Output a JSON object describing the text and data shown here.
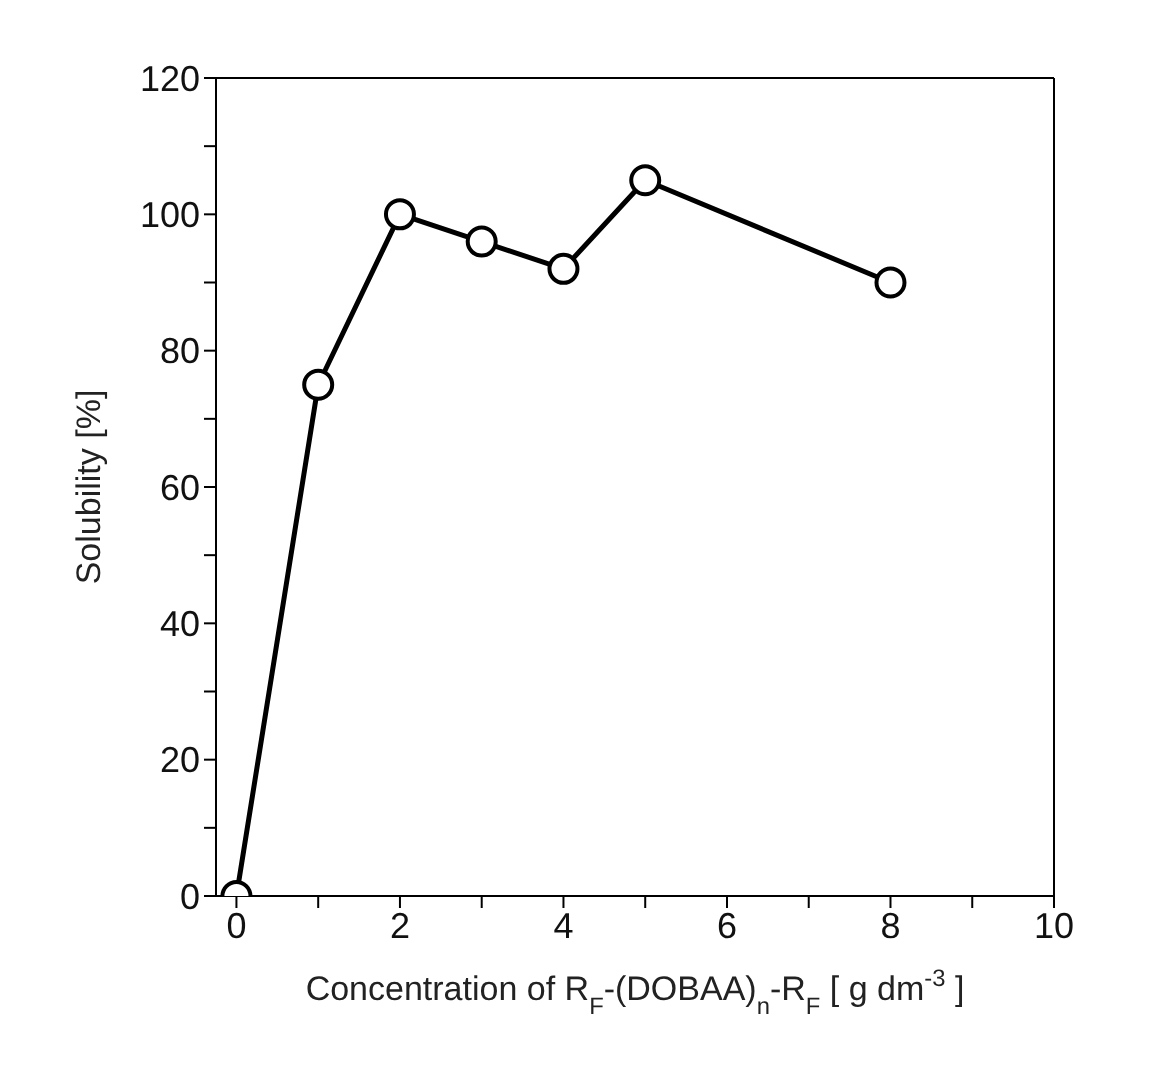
{
  "chart_data": {
    "type": "line",
    "xlabel": "Concentration of R$_{F}$-(DOBAA)$_{n}$-R$_{F}$ [ g dm$^{-3}$ ]",
    "ylabel": "Solubility [%]",
    "x": [
      0,
      1,
      2,
      3,
      4,
      5,
      8
    ],
    "series": [
      {
        "color": "#000000",
        "values": [
          0,
          75,
          100,
          96,
          92,
          105,
          90
        ]
      }
    ],
    "xlim": [
      -0.25,
      10
    ],
    "xticks": [
      0,
      {
        "value": 1,
        "label": null
      },
      2,
      {
        "value": 3,
        "label": null
      },
      4,
      {
        "value": 5,
        "label": null
      },
      6,
      {
        "value": 7,
        "label": null
      },
      8,
      {
        "value": 9,
        "label": null
      },
      10
    ],
    "ylim": [
      0,
      120
    ],
    "yticks": [
      0,
      {
        "value": 10,
        "label": null
      },
      20,
      {
        "value": 30,
        "label": null
      },
      40,
      {
        "value": 50,
        "label": null
      },
      60,
      {
        "value": 70,
        "label": null
      },
      80,
      {
        "value": 90,
        "label": null
      },
      100,
      {
        "value": 110,
        "label": null
      },
      120
    ],
    "grid": false,
    "legend": false,
    "marker": "circle",
    "line_style": "solid"
  }
}
